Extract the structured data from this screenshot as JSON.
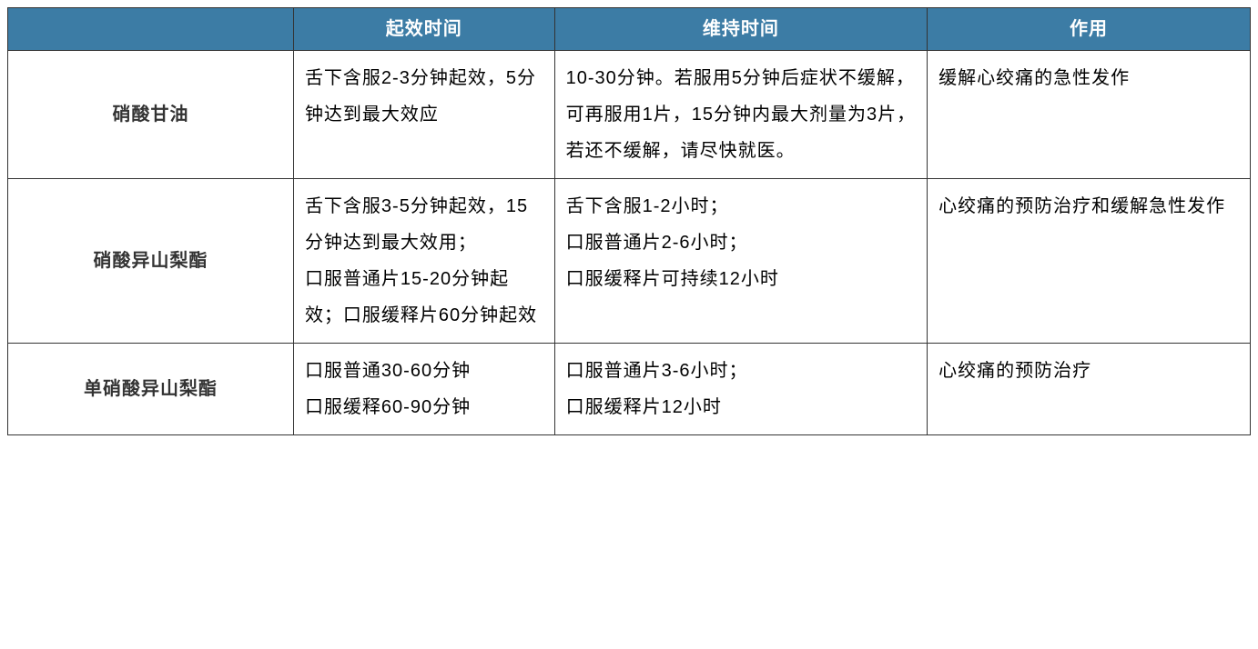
{
  "table": {
    "type": "table",
    "header_bg": "#3c7ca5",
    "header_fg": "#ffffff",
    "border_color": "#333333",
    "font_size_pt": 15,
    "columns": [
      {
        "label": "",
        "width_pct": 23
      },
      {
        "label": "起效时间",
        "width_pct": 21
      },
      {
        "label": "维持时间",
        "width_pct": 30
      },
      {
        "label": "作用",
        "width_pct": 26
      }
    ],
    "rows": [
      {
        "name": "硝酸甘油",
        "onset": "舌下含服2-3分钟起效，5分钟达到最大效应",
        "duration": "10-30分钟。若服用5分钟后症状不缓解，可再服用1片，15分钟内最大剂量为3片，若还不缓解，请尽快就医。",
        "effect": "缓解心绞痛的急性发作"
      },
      {
        "name": "硝酸异山梨酯",
        "onset": "舌下含服3-5分钟起效，15分钟达到最大效用；\n口服普通片15-20分钟起效；口服缓释片60分钟起效",
        "duration": "舌下含服1-2小时；\n口服普通片2-6小时；\n口服缓释片可持续12小时",
        "effect": "心绞痛的预防治疗和缓解急性发作"
      },
      {
        "name": "单硝酸异山梨酯",
        "onset": "口服普通30-60分钟\n口服缓释60-90分钟",
        "duration": "口服普通片3-6小时；\n口服缓释片12小时",
        "effect": "心绞痛的预防治疗"
      }
    ]
  }
}
